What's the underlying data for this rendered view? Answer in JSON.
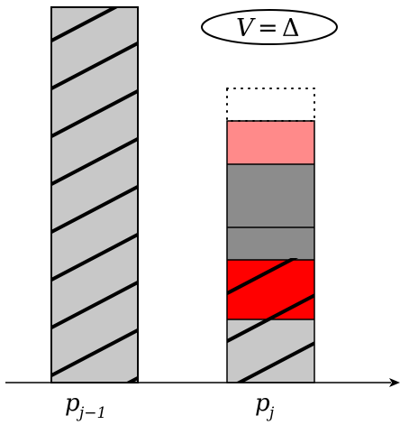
{
  "annotation": {
    "lhs": "V",
    "eq": "=",
    "rhs": "Δ"
  },
  "axis_labels": {
    "left": {
      "base": "p",
      "sub": "j−1"
    },
    "right": {
      "base": "p",
      "sub": "j"
    }
  },
  "colors": {
    "hatch_fill": "#c8c8c8",
    "light_red": "#ff8a8a",
    "dark_gray": "#8c8c8c",
    "red": "#ff0000",
    "stroke": "#000000"
  }
}
